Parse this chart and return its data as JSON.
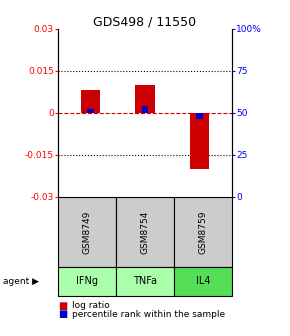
{
  "title": "GDS498 / 11550",
  "samples": [
    "GSM8749",
    "GSM8754",
    "GSM8759"
  ],
  "agents": [
    "IFNg",
    "TNFa",
    "IL4"
  ],
  "log_ratios": [
    0.008,
    0.01,
    -0.02
  ],
  "percentile_ranks": [
    52,
    54,
    46
  ],
  "ylim_left": [
    -0.03,
    0.03
  ],
  "ylim_right": [
    0,
    100
  ],
  "yticks_left": [
    -0.03,
    -0.015,
    0,
    0.015,
    0.03
  ],
  "yticks_right": [
    0,
    25,
    50,
    75,
    100
  ],
  "ytick_labels_left": [
    "-0.03",
    "-0.015",
    "0",
    "0.015",
    "0.03"
  ],
  "ytick_labels_right": [
    "0",
    "25",
    "50",
    "75",
    "100%"
  ],
  "bar_color_red": "#cc0000",
  "bar_color_blue": "#0000cc",
  "agent_colors": [
    "#aaffaa",
    "#aaffaa",
    "#55dd55"
  ],
  "sample_bg_color": "#cccccc",
  "hline_color": "#cc0000",
  "bar_width": 0.35,
  "blue_bar_width": 0.12,
  "fig_bg": "#ffffff"
}
